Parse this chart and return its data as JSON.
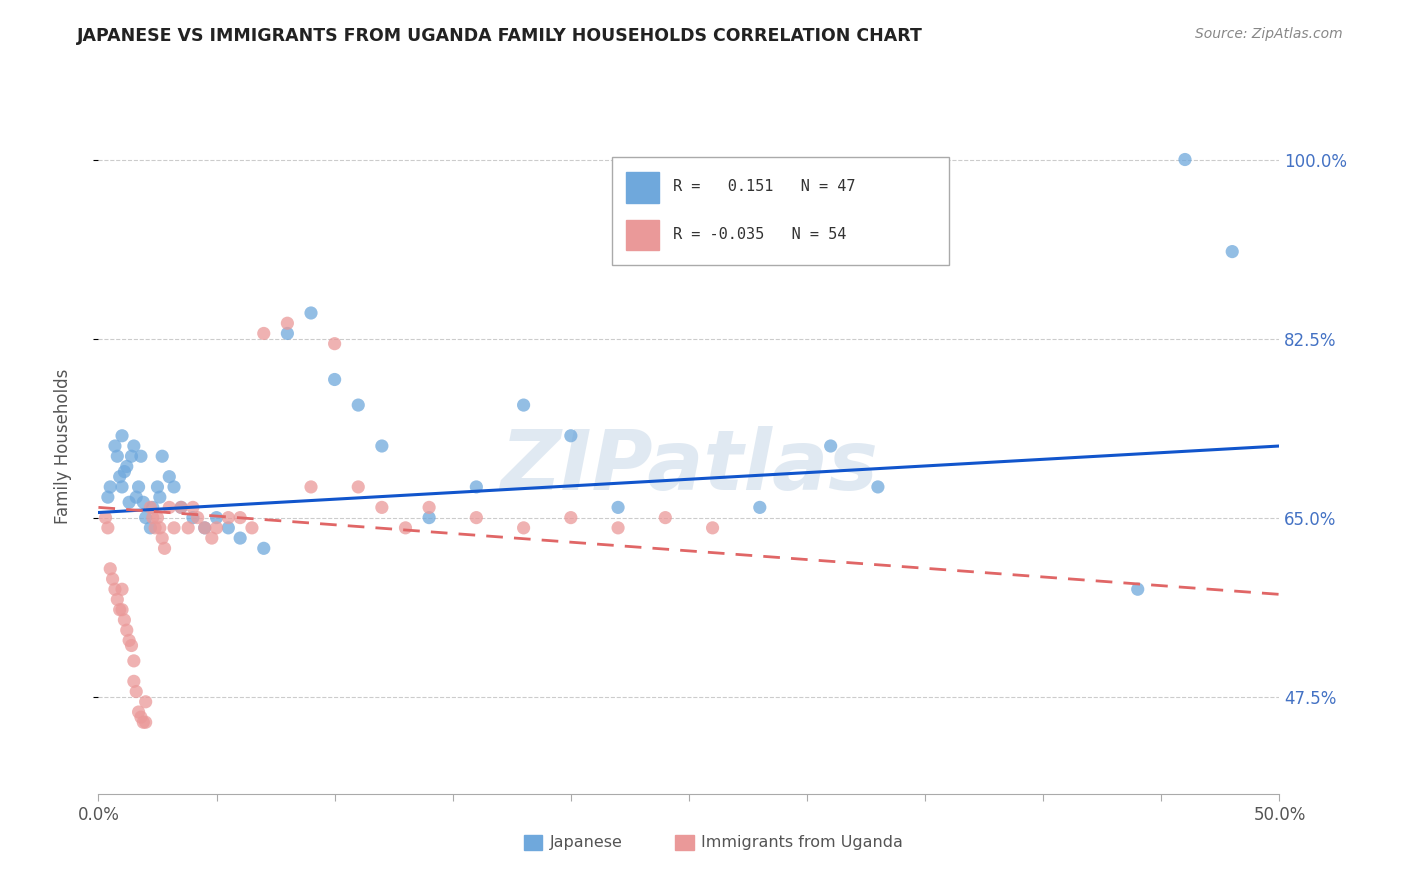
{
  "title": "JAPANESE VS IMMIGRANTS FROM UGANDA FAMILY HOUSEHOLDS CORRELATION CHART",
  "source": "Source: ZipAtlas.com",
  "ylabel": "Family Households",
  "color_japanese": "#6FA8DC",
  "color_uganda": "#EA9999",
  "color_line_japanese": "#1155CC",
  "color_line_uganda": "#E06666",
  "watermark": "ZIPatlas",
  "xmin": 0.0,
  "xmax": 0.5,
  "ymin": 0.38,
  "ymax": 1.06,
  "ytick_vals": [
    0.475,
    0.65,
    0.825,
    1.0
  ],
  "ytick_labels": [
    "47.5%",
    "65.0%",
    "82.5%",
    "100.0%"
  ],
  "japanese_x": [
    0.004,
    0.005,
    0.007,
    0.008,
    0.009,
    0.01,
    0.01,
    0.011,
    0.012,
    0.013,
    0.014,
    0.015,
    0.016,
    0.017,
    0.018,
    0.019,
    0.02,
    0.022,
    0.023,
    0.025,
    0.026,
    0.027,
    0.03,
    0.032,
    0.035,
    0.04,
    0.045,
    0.05,
    0.055,
    0.06,
    0.07,
    0.08,
    0.09,
    0.1,
    0.11,
    0.12,
    0.14,
    0.16,
    0.18,
    0.2,
    0.22,
    0.28,
    0.31,
    0.33,
    0.44,
    0.46,
    0.48
  ],
  "japanese_y": [
    0.67,
    0.68,
    0.72,
    0.71,
    0.69,
    0.68,
    0.73,
    0.695,
    0.7,
    0.665,
    0.71,
    0.72,
    0.67,
    0.68,
    0.71,
    0.665,
    0.65,
    0.64,
    0.66,
    0.68,
    0.67,
    0.71,
    0.69,
    0.68,
    0.66,
    0.65,
    0.64,
    0.65,
    0.64,
    0.63,
    0.62,
    0.83,
    0.85,
    0.785,
    0.76,
    0.72,
    0.65,
    0.68,
    0.76,
    0.73,
    0.66,
    0.66,
    0.72,
    0.68,
    0.58,
    1.0,
    0.91
  ],
  "uganda_x": [
    0.003,
    0.004,
    0.005,
    0.006,
    0.007,
    0.008,
    0.009,
    0.01,
    0.01,
    0.011,
    0.012,
    0.013,
    0.014,
    0.015,
    0.015,
    0.016,
    0.017,
    0.018,
    0.019,
    0.02,
    0.02,
    0.022,
    0.023,
    0.024,
    0.025,
    0.026,
    0.027,
    0.028,
    0.03,
    0.032,
    0.035,
    0.038,
    0.04,
    0.042,
    0.045,
    0.048,
    0.05,
    0.055,
    0.06,
    0.065,
    0.07,
    0.08,
    0.09,
    0.1,
    0.11,
    0.12,
    0.13,
    0.14,
    0.16,
    0.18,
    0.2,
    0.22,
    0.24,
    0.26
  ],
  "uganda_y": [
    0.65,
    0.64,
    0.6,
    0.59,
    0.58,
    0.57,
    0.56,
    0.56,
    0.58,
    0.55,
    0.54,
    0.53,
    0.525,
    0.51,
    0.49,
    0.48,
    0.46,
    0.455,
    0.45,
    0.45,
    0.47,
    0.66,
    0.65,
    0.64,
    0.65,
    0.64,
    0.63,
    0.62,
    0.66,
    0.64,
    0.66,
    0.64,
    0.66,
    0.65,
    0.64,
    0.63,
    0.64,
    0.65,
    0.65,
    0.64,
    0.83,
    0.84,
    0.68,
    0.82,
    0.68,
    0.66,
    0.64,
    0.66,
    0.65,
    0.64,
    0.65,
    0.64,
    0.65,
    0.64
  ],
  "r_japanese": 0.151,
  "n_japanese": 47,
  "r_uganda": -0.035,
  "n_uganda": 54
}
